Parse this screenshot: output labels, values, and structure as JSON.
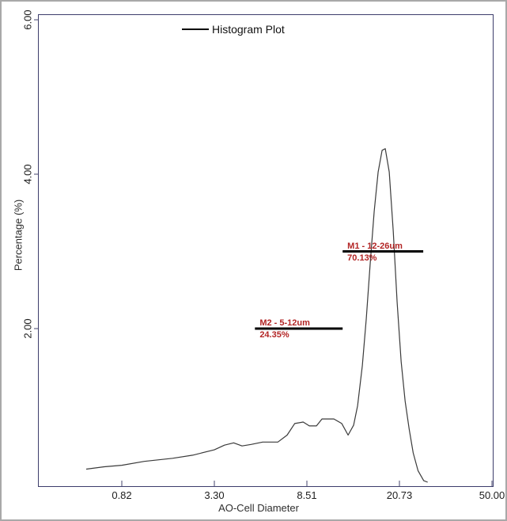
{
  "window": {
    "bg": "#ffffff",
    "border_color": "#a9a9a9"
  },
  "legend": {
    "label": "Histogram Plot",
    "swatch_color": "#000000"
  },
  "axes": {
    "x_title": "AO-Cell Diameter",
    "y_title": "Percentage (%)",
    "frame_color": "#3d3d6b"
  },
  "chart_data": {
    "type": "line",
    "title": "",
    "legend": [
      "Histogram Plot"
    ],
    "legend_position": "top-center",
    "xlabel": "AO-Cell Diameter",
    "ylabel": "Percentage (%)",
    "x_scale": "log",
    "x_tick_labels": [
      "0.82",
      "3.30",
      "8.51",
      "20.73",
      "50.00"
    ],
    "y_tick_labels": [
      "6.00",
      "4.00",
      "2.00"
    ],
    "ylim": [
      0,
      6
    ],
    "grid": false,
    "line_color": "#3a3a3a",
    "series": [
      {
        "name": "Histogram Plot",
        "x_unit": "um",
        "y_unit": "%",
        "points": [
          [
            0.48,
            0.18
          ],
          [
            0.63,
            0.21
          ],
          [
            0.82,
            0.23
          ],
          [
            1.15,
            0.28
          ],
          [
            1.76,
            0.32
          ],
          [
            2.38,
            0.36
          ],
          [
            3.3,
            0.43
          ],
          [
            3.66,
            0.49
          ],
          [
            4.02,
            0.52
          ],
          [
            4.38,
            0.48
          ],
          [
            4.81,
            0.5
          ],
          [
            5.41,
            0.53
          ],
          [
            6.32,
            0.53
          ],
          [
            6.95,
            0.62
          ],
          [
            7.51,
            0.77
          ],
          [
            8.19,
            0.79
          ],
          [
            8.71,
            0.74
          ],
          [
            9.33,
            0.74
          ],
          [
            9.84,
            0.83
          ],
          [
            11.03,
            0.83
          ],
          [
            11.9,
            0.77
          ],
          [
            12.65,
            0.62
          ],
          [
            13.34,
            0.75
          ],
          [
            13.86,
            1.0
          ],
          [
            14.51,
            1.52
          ],
          [
            15.07,
            2.13
          ],
          [
            15.66,
            2.85
          ],
          [
            16.26,
            3.52
          ],
          [
            16.89,
            4.03
          ],
          [
            17.55,
            4.31
          ],
          [
            18.09,
            4.33
          ],
          [
            18.79,
            4.03
          ],
          [
            19.53,
            3.26
          ],
          [
            20.28,
            2.34
          ],
          [
            21.07,
            1.57
          ],
          [
            21.89,
            1.06
          ],
          [
            22.74,
            0.7
          ],
          [
            23.63,
            0.39
          ],
          [
            24.74,
            0.16
          ],
          [
            26.11,
            0.03
          ],
          [
            27.12,
            0.01
          ]
        ]
      }
    ],
    "markers": [
      {
        "name": "M1",
        "label": "M1 - 12-26um",
        "percent": "70.13%",
        "from_um": 12,
        "to_um": 26,
        "level_pct": 3.0,
        "text_color": "#b22424",
        "line_color": "#000000"
      },
      {
        "name": "M2",
        "label": "M2 - 5-12um",
        "percent": "24.35%",
        "from_um": 5,
        "to_um": 12,
        "level_pct": 2.0,
        "text_color": "#b22424",
        "line_color": "#000000"
      }
    ]
  }
}
